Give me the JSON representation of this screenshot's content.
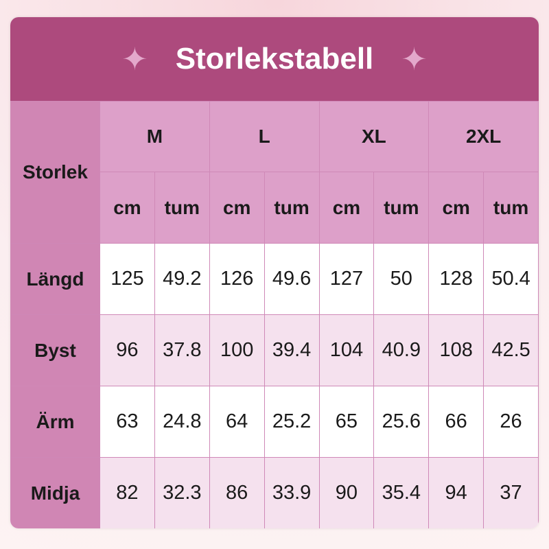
{
  "title": "Storlekstabell",
  "icon": "sparkle-icon",
  "row_header": "Storlek",
  "sizes": [
    "M",
    "L",
    "XL",
    "2XL"
  ],
  "units": [
    "cm",
    "tum"
  ],
  "rows": [
    {
      "label": "Längd",
      "values": [
        "125",
        "49.2",
        "126",
        "49.6",
        "127",
        "50",
        "128",
        "50.4"
      ]
    },
    {
      "label": "Byst",
      "values": [
        "96",
        "37.8",
        "100",
        "39.4",
        "104",
        "40.9",
        "108",
        "42.5"
      ]
    },
    {
      "label": "Ärm",
      "values": [
        "63",
        "24.8",
        "64",
        "25.2",
        "65",
        "25.6",
        "66",
        "26"
      ]
    },
    {
      "label": "Midja",
      "values": [
        "82",
        "32.3",
        "86",
        "33.9",
        "90",
        "35.4",
        "94",
        "37"
      ]
    }
  ],
  "colors": {
    "header": "#ad4a7d",
    "label_column": "#d086b4",
    "header_cells": "#dda0c9",
    "alt_row": "#f5e1ee"
  }
}
